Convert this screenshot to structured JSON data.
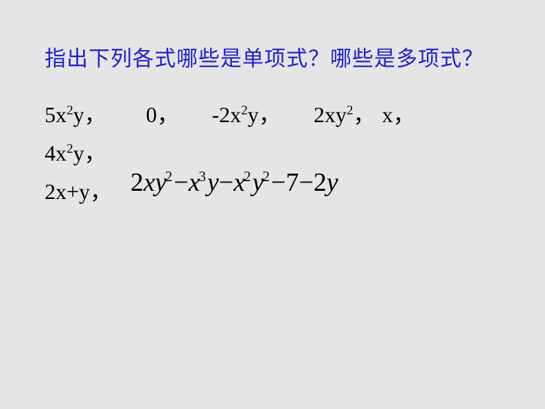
{
  "background_color": "#e5e5e5",
  "text_color": "#000000",
  "question": {
    "text": "指出下列各式哪些是单项式？哪些是多项式？",
    "color": "#2020d0",
    "fontsize": 31,
    "font_family": "SimSun"
  },
  "expressions": {
    "line1": {
      "items": [
        "5x²y，",
        "0，",
        "-2x²y，",
        "2xy²，",
        "x，"
      ],
      "fontsize": 32,
      "font_family": "Times New Roman"
    },
    "line2": {
      "items": [
        "4x²y，"
      ],
      "fontsize": 32
    },
    "line3_prefix": {
      "text": "2x+y，",
      "fontsize": 32
    },
    "polynomial": {
      "latex": "2xy^2 - x^3y - x^2y^2 - 7 - 2y",
      "terms": [
        {
          "coef": "2",
          "vars": "xy",
          "exp": "2"
        },
        {
          "op": "−",
          "vars": "x",
          "exp": "3",
          "vars2": "y"
        },
        {
          "op": "−",
          "vars": "x",
          "exp": "2",
          "vars2": "y",
          "exp2": "2"
        },
        {
          "op": "−",
          "coef": "7"
        },
        {
          "op": "−",
          "coef": "2",
          "vars": "y"
        }
      ],
      "fontsize": 38,
      "font_style": "italic",
      "color": "#000000"
    }
  },
  "labels": {
    "t1": "5x",
    "t1_exp": "2",
    "t1_end": "y",
    "comma": "，",
    "t2": "0",
    "t3_pre": "-2x",
    "t3_exp": "2",
    "t3_end": "y",
    "t4_pre": "2xy",
    "t4_exp": "2",
    "t5": "x",
    "l2_pre": "4x",
    "l2_exp": "2",
    "l2_end": "y",
    "l3": "2x+y",
    "p_2": "2",
    "p_xy": "xy",
    "p_e2": "2",
    "p_minus": "−",
    "p_x": "x",
    "p_e3": "3",
    "p_y": "y",
    "p_7": "7"
  }
}
